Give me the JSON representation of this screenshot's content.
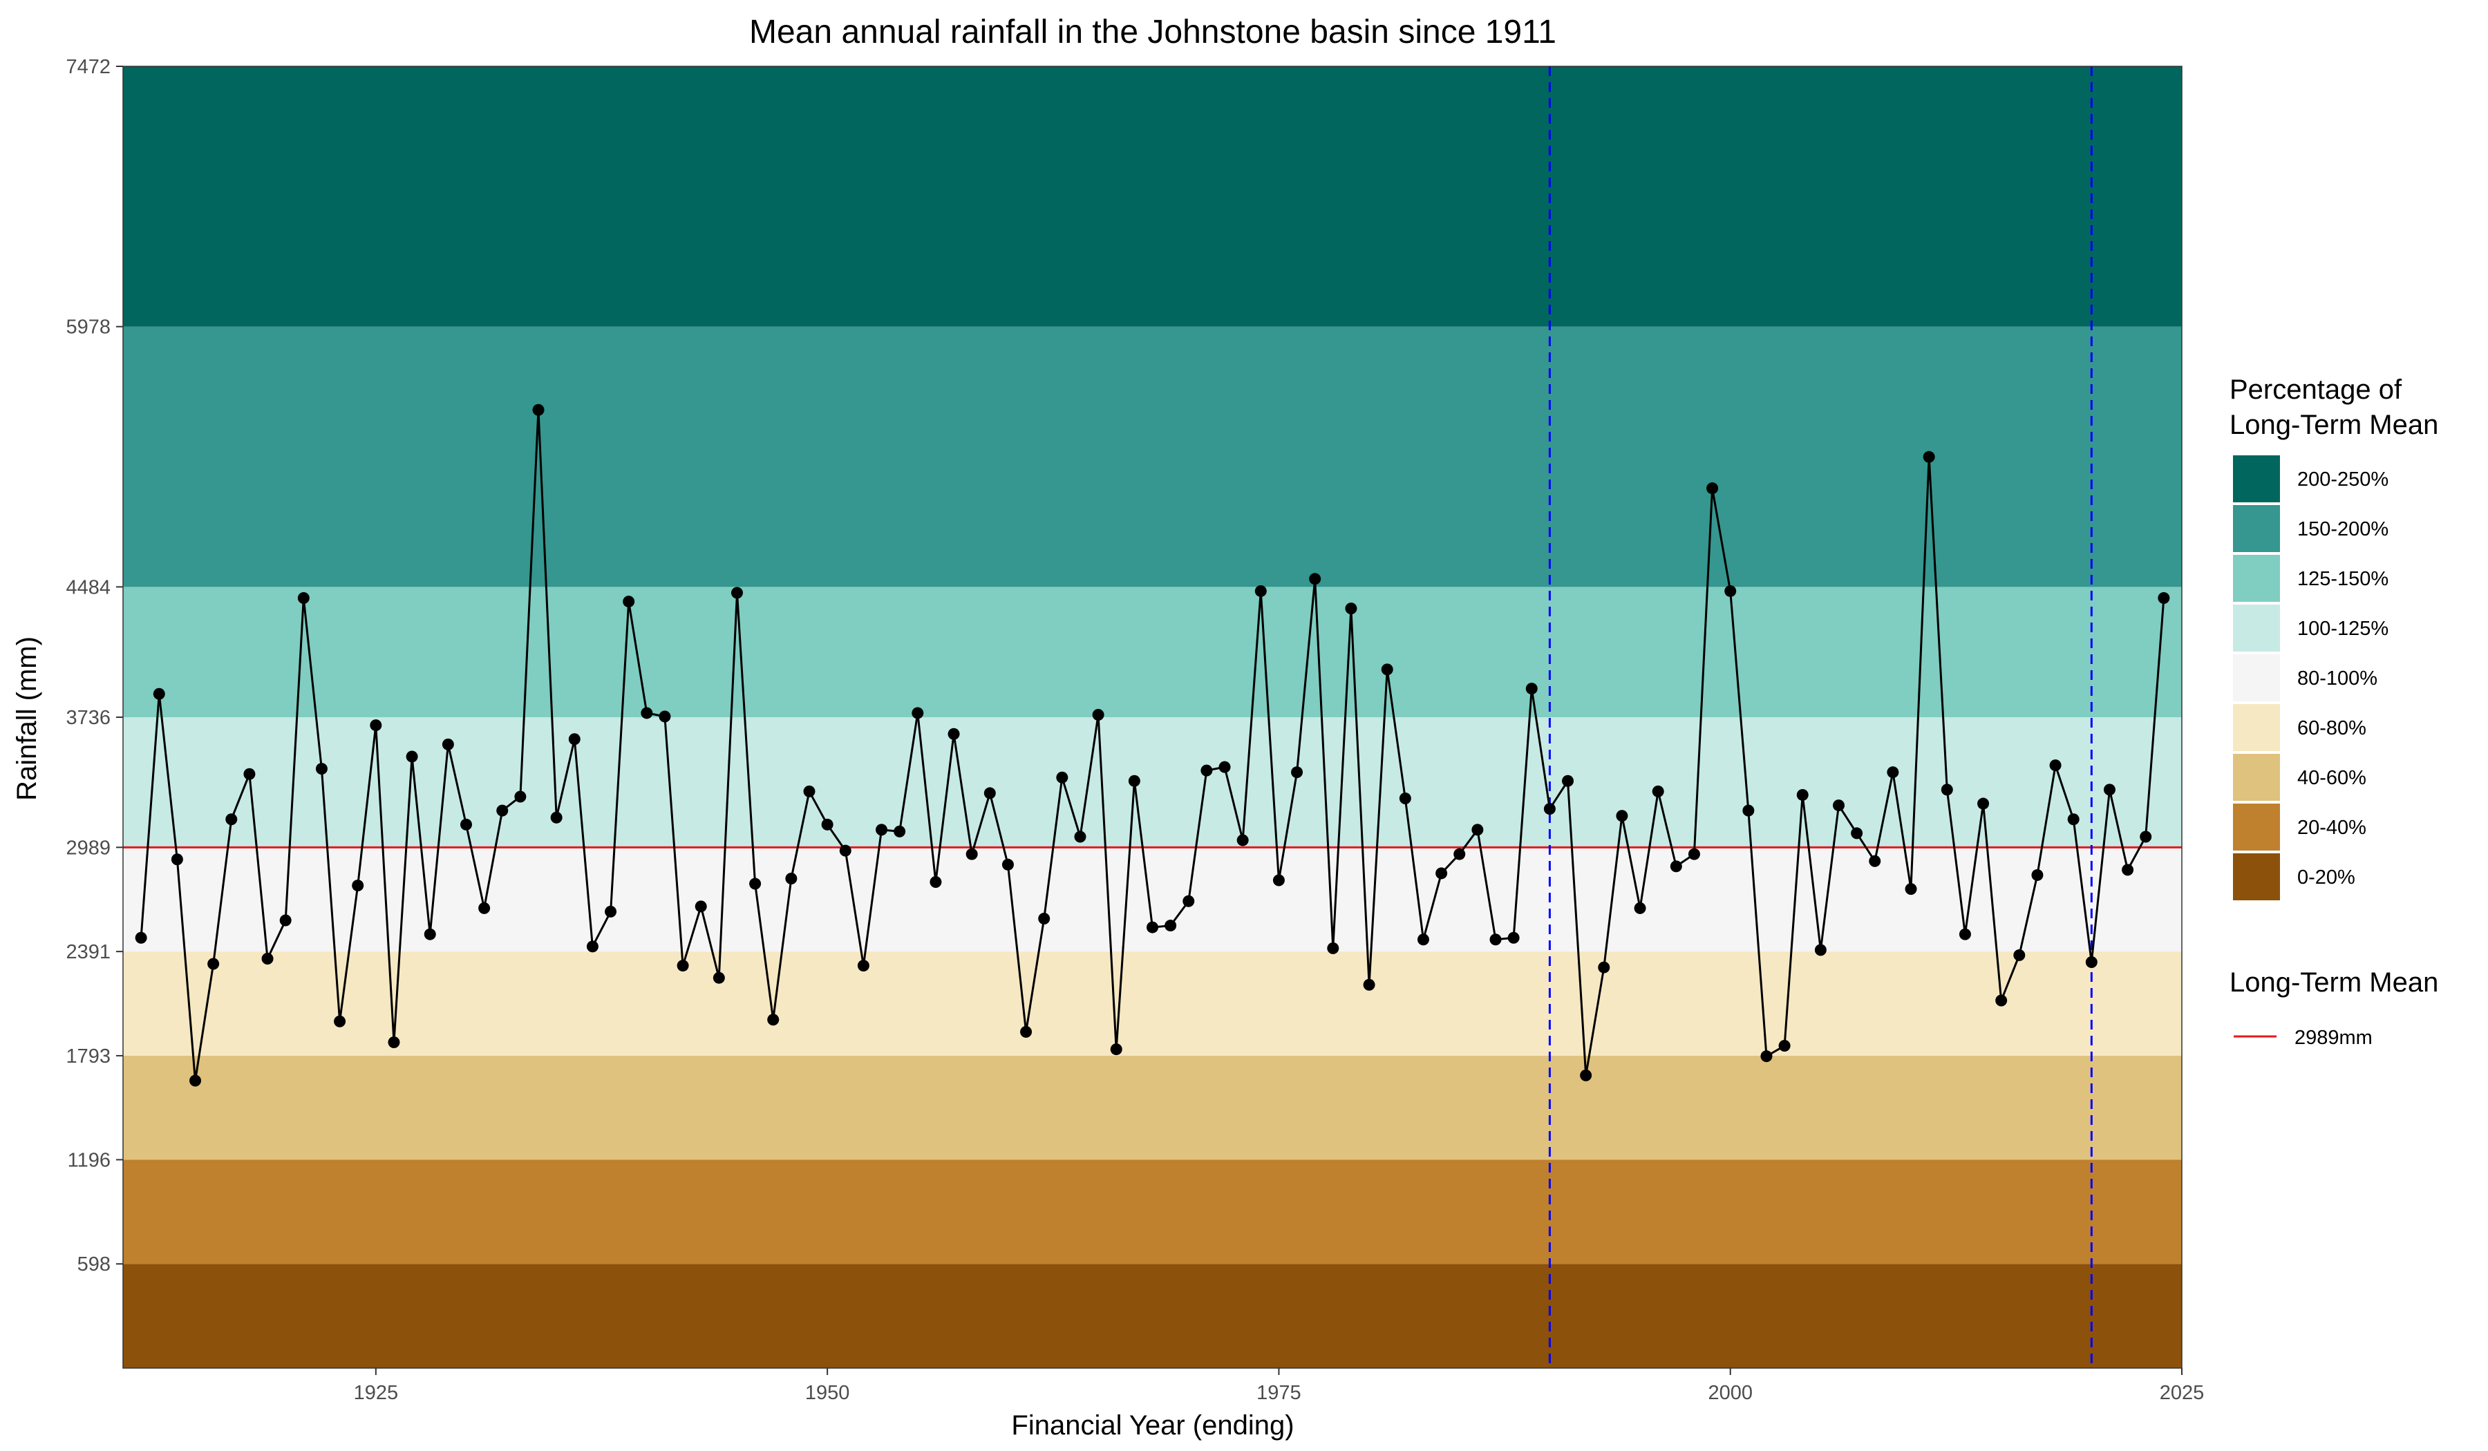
{
  "chart_data": {
    "type": "line",
    "title": "Mean annual rainfall in the Johnstone basin since 1911",
    "xlabel": "Financial Year (ending)",
    "ylabel": "Rainfall (mm)",
    "xlim": [
      1911,
      2025
    ],
    "ylim": [
      0,
      7472
    ],
    "x_ticks": [
      1925,
      1950,
      1975,
      2000,
      2025
    ],
    "x_tick_labels": [
      "1925",
      "1950",
      "1975",
      "2000",
      "2025"
    ],
    "y_ticks": [
      598,
      1196,
      1793,
      2391,
      2989,
      3736,
      4484,
      5978,
      7472
    ],
    "y_tick_labels": [
      "598",
      "1196",
      "1793",
      "2391",
      "2989",
      "3736",
      "4484",
      "5978",
      "7472"
    ],
    "grid": false,
    "bands": [
      {
        "label": "0-20%",
        "from": 0,
        "to": 598,
        "color": "#8C510A"
      },
      {
        "label": "20-40%",
        "from": 598,
        "to": 1196,
        "color": "#BF812D"
      },
      {
        "label": "40-60%",
        "from": 1196,
        "to": 1793,
        "color": "#DFC27D"
      },
      {
        "label": "60-80%",
        "from": 1793,
        "to": 2391,
        "color": "#F6E8C3"
      },
      {
        "label": "80-100%",
        "from": 2391,
        "to": 2989,
        "color": "#F5F5F5"
      },
      {
        "label": "100-125%",
        "from": 2989,
        "to": 3736,
        "color": "#C7EAE5"
      },
      {
        "label": "125-150%",
        "from": 3736,
        "to": 4484,
        "color": "#80CDC1"
      },
      {
        "label": "150-200%",
        "from": 4484,
        "to": 5978,
        "color": "#35978F"
      },
      {
        "label": "200-250%",
        "from": 5978,
        "to": 7472,
        "color": "#01665E"
      }
    ],
    "mean_line": {
      "value": 2989,
      "color": "#E41A1C"
    },
    "vlines": {
      "x": [
        1990,
        2020
      ],
      "color": "#0000FF"
    },
    "series": [
      {
        "color": "#000000",
        "x": [
          1912,
          1913,
          1914,
          1915,
          1916,
          1917,
          1918,
          1919,
          1920,
          1921,
          1922,
          1923,
          1924,
          1925,
          1926,
          1927,
          1928,
          1929,
          1930,
          1931,
          1932,
          1933,
          1934,
          1935,
          1936,
          1937,
          1938,
          1939,
          1940,
          1941,
          1942,
          1943,
          1944,
          1945,
          1946,
          1947,
          1948,
          1949,
          1950,
          1951,
          1952,
          1953,
          1954,
          1955,
          1956,
          1957,
          1958,
          1959,
          1960,
          1961,
          1962,
          1963,
          1964,
          1965,
          1966,
          1967,
          1968,
          1969,
          1970,
          1971,
          1972,
          1973,
          1974,
          1975,
          1976,
          1977,
          1978,
          1979,
          1980,
          1981,
          1982,
          1983,
          1984,
          1985,
          1986,
          1987,
          1988,
          1989,
          1990,
          1991,
          1992,
          1993,
          1994,
          1995,
          1996,
          1997,
          1998,
          1999,
          2000,
          2001,
          2002,
          2003,
          2004,
          2005,
          2006,
          2007,
          2008,
          2009,
          2010,
          2011,
          2012,
          2013,
          2014,
          2015,
          2016,
          2017,
          2018,
          2019,
          2020,
          2021,
          2022,
          2023,
          2024
        ],
        "values": [
          2470,
          3870,
          2920,
          1650,
          2320,
          3150,
          3410,
          2350,
          2570,
          4420,
          3440,
          1990,
          2770,
          3690,
          1870,
          3510,
          2490,
          3580,
          3120,
          2640,
          3200,
          3280,
          5500,
          3160,
          3610,
          2420,
          2620,
          4400,
          3760,
          3740,
          2310,
          2650,
          2240,
          4450,
          2780,
          2000,
          2810,
          3310,
          3120,
          2970,
          2310,
          3090,
          3080,
          3760,
          2790,
          3640,
          2950,
          3300,
          2890,
          1930,
          2580,
          3390,
          3050,
          3750,
          1830,
          3370,
          2530,
          2540,
          2680,
          3430,
          3450,
          3030,
          4460,
          2800,
          3420,
          4530,
          2410,
          4360,
          2200,
          4010,
          3270,
          2460,
          2840,
          2950,
          3090,
          2460,
          2470,
          3900,
          3210,
          3370,
          1680,
          2300,
          3170,
          2640,
          3310,
          2880,
          2950,
          5050,
          4460,
          3200,
          1790,
          1850,
          3290,
          2400,
          3230,
          3070,
          2910,
          3420,
          2750,
          5230,
          3320,
          2490,
          3240,
          2110,
          2370,
          2830,
          3460,
          3150,
          2330,
          3320,
          2860,
          3050,
          4420
        ]
      }
    ]
  },
  "legend": {
    "bands_title_line1": "Percentage of",
    "bands_title_line2": "Long-Term Mean",
    "mean_title": "Long-Term Mean",
    "mean_label": "2989mm"
  }
}
